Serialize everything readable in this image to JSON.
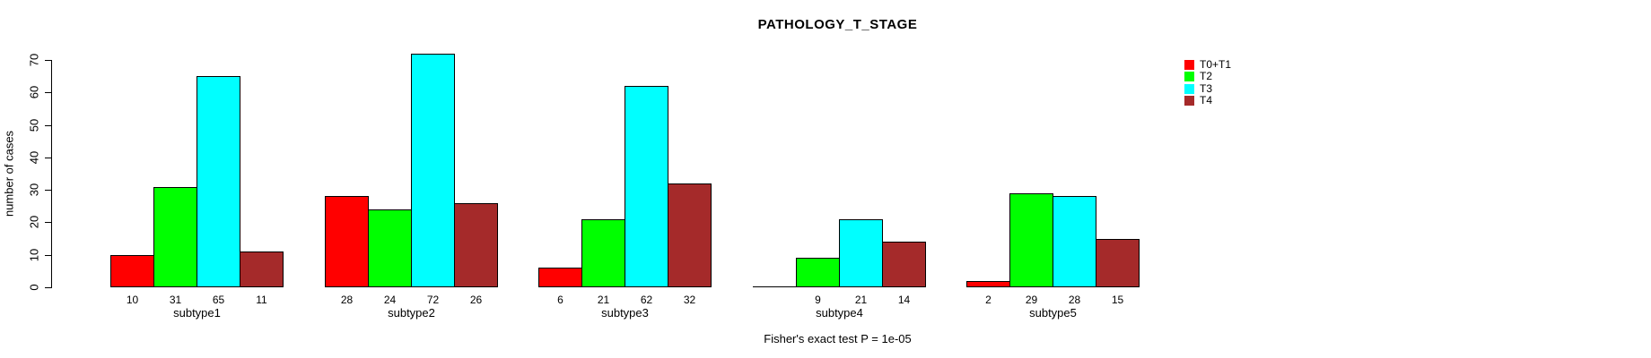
{
  "chart_data": {
    "type": "bar",
    "title": "PATHOLOGY_T_STAGE",
    "ylabel": "number of cases",
    "xlabel": "",
    "categories": [
      "subtype1",
      "subtype2",
      "subtype3",
      "subtype4",
      "subtype5"
    ],
    "series": [
      {
        "name": "T0+T1",
        "color": "#FF0000",
        "values": [
          10,
          28,
          6,
          0,
          2
        ]
      },
      {
        "name": "T2",
        "color": "#00FF00",
        "values": [
          31,
          24,
          21,
          9,
          29
        ]
      },
      {
        "name": "T3",
        "color": "#00FFFF",
        "values": [
          65,
          72,
          62,
          21,
          28
        ]
      },
      {
        "name": "T4",
        "color": "#A52A2A",
        "values": [
          11,
          26,
          32,
          14,
          15
        ]
      }
    ],
    "bar_value_labels": [
      [
        "10",
        "31",
        "65",
        "11"
      ],
      [
        "28",
        "24",
        "72",
        "26"
      ],
      [
        "6",
        "21",
        "62",
        "32"
      ],
      [
        "",
        "9",
        "21",
        "14"
      ],
      [
        "2",
        "29",
        "28",
        "15"
      ]
    ],
    "yticks": [
      0,
      10,
      20,
      30,
      40,
      50,
      60,
      70
    ],
    "ylim": [
      0,
      70
    ],
    "grid": false,
    "legend_position": "right-inside",
    "annotation": "Fisher's exact test P = 1e-05",
    "bar_border_color": "#000000",
    "axis_color": "#000000",
    "background": "#FFFFFF"
  }
}
